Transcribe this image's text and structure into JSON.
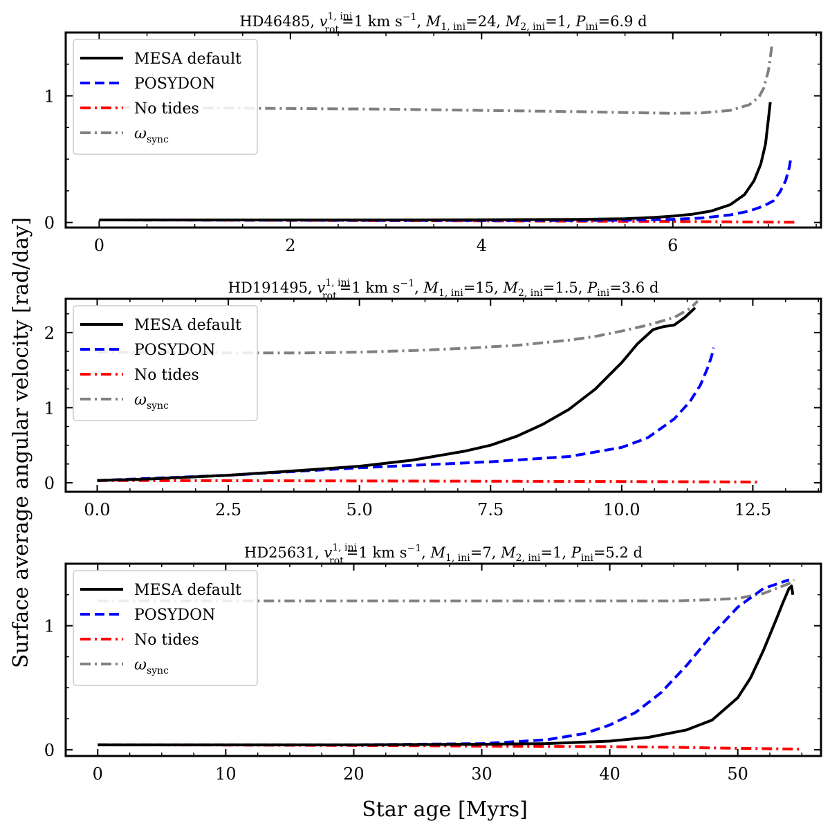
{
  "figure": {
    "ylabel": "Surface average angular velocity [rad/day]",
    "xlabel": "Star age [Myrs]"
  },
  "legend_entries": [
    {
      "label": "MESA default",
      "color": "#000000",
      "style": "solid"
    },
    {
      "label": "POSYDON",
      "color": "#0000ff",
      "style": "dashed"
    },
    {
      "label": "No tides",
      "color": "#ff0000",
      "style": "dashdot"
    },
    {
      "label": "ω",
      "sub": "sync",
      "color": "#808080",
      "style": "dashdot"
    }
  ],
  "chart_data": [
    {
      "type": "line",
      "title": "HD46485, v_rot^{1,ini}=1 km s^-1, M_{1,ini}=24, M_{2,ini}=1, P_ini=6.9 d",
      "title_parts": {
        "star": "HD46485",
        "M1": "24",
        "M2": "1",
        "P": "6.9 d"
      },
      "xlim": [
        -0.35,
        7.55
      ],
      "ylim": [
        -0.04,
        1.5
      ],
      "xticks": [
        0,
        2,
        4,
        6
      ],
      "xtick_labels": [
        "0",
        "2",
        "4",
        "6"
      ],
      "yticks": [
        0,
        1
      ],
      "ytick_labels": [
        "0",
        "1"
      ],
      "series": [
        {
          "name": "ω_sync",
          "x": [
            0,
            0.5,
            1,
            2,
            3,
            4,
            5,
            5.5,
            6,
            6.3,
            6.6,
            6.8,
            6.9,
            6.95,
            7.0,
            7.02,
            7.04
          ],
          "y": [
            0.91,
            0.91,
            0.905,
            0.9,
            0.895,
            0.885,
            0.875,
            0.868,
            0.862,
            0.865,
            0.885,
            0.93,
            0.99,
            1.06,
            1.2,
            1.3,
            1.42
          ]
        },
        {
          "name": "No tides",
          "x": [
            0,
            1,
            2,
            3,
            4,
            5,
            6,
            6.5,
            7,
            7.3
          ],
          "y": [
            0.02,
            0.019,
            0.017,
            0.015,
            0.013,
            0.011,
            0.008,
            0.006,
            0.003,
            0.002
          ]
        },
        {
          "name": "POSYDON",
          "x": [
            0,
            1,
            2,
            3,
            4,
            5,
            5.5,
            6,
            6.3,
            6.6,
            6.8,
            6.95,
            7.05,
            7.12,
            7.18,
            7.22,
            7.23
          ],
          "y": [
            0.02,
            0.019,
            0.018,
            0.017,
            0.016,
            0.016,
            0.018,
            0.025,
            0.035,
            0.06,
            0.09,
            0.13,
            0.17,
            0.24,
            0.33,
            0.44,
            0.49
          ]
        },
        {
          "name": "MESA default",
          "x": [
            0,
            1,
            2,
            3,
            4,
            5,
            5.5,
            5.8,
            6.0,
            6.2,
            6.4,
            6.6,
            6.75,
            6.85,
            6.92,
            6.97,
            7.0,
            7.02
          ],
          "y": [
            0.02,
            0.02,
            0.02,
            0.02,
            0.021,
            0.024,
            0.03,
            0.04,
            0.05,
            0.065,
            0.09,
            0.14,
            0.22,
            0.33,
            0.46,
            0.62,
            0.82,
            0.95
          ]
        }
      ]
    },
    {
      "type": "line",
      "title": "HD191495, v_rot^{1,ini}=1 km s^-1, M_{1,ini}=15, M_{2,ini}=1.5, P_ini=3.6 d",
      "title_parts": {
        "star": "HD191495",
        "M1": "15",
        "M2": "1.5",
        "P": "3.6 d"
      },
      "xlim": [
        -0.6,
        13.8
      ],
      "ylim": [
        -0.12,
        2.45
      ],
      "xticks": [
        0,
        2.5,
        5,
        7.5,
        10,
        12.5
      ],
      "xtick_labels": [
        "0.0",
        "2.5",
        "5.0",
        "7.5",
        "10.0",
        "12.5"
      ],
      "yticks": [
        0,
        1,
        2
      ],
      "ytick_labels": [
        "0",
        "1",
        "2"
      ],
      "series": [
        {
          "name": "ω_sync",
          "x": [
            0,
            2,
            4,
            5,
            6,
            7,
            8,
            9,
            9.5,
            10,
            10.5,
            11,
            11.3,
            11.45
          ],
          "y": [
            1.74,
            1.73,
            1.73,
            1.74,
            1.76,
            1.79,
            1.83,
            1.9,
            1.95,
            2.02,
            2.1,
            2.2,
            2.32,
            2.42
          ]
        },
        {
          "name": "No tides",
          "x": [
            0,
            2,
            4,
            6,
            8,
            10,
            12,
            12.6
          ],
          "y": [
            0.03,
            0.028,
            0.026,
            0.023,
            0.02,
            0.016,
            0.012,
            0.01
          ]
        },
        {
          "name": "POSYDON",
          "x": [
            0,
            2.5,
            5,
            7.5,
            9,
            10,
            10.5,
            11,
            11.3,
            11.5,
            11.65,
            11.72,
            11.75
          ],
          "y": [
            0.03,
            0.1,
            0.2,
            0.28,
            0.35,
            0.47,
            0.6,
            0.85,
            1.08,
            1.3,
            1.55,
            1.7,
            1.8
          ]
        },
        {
          "name": "MESA default",
          "x": [
            0,
            1,
            2.5,
            4,
            5,
            6,
            7,
            7.5,
            8,
            8.5,
            9,
            9.5,
            10,
            10.3,
            10.6,
            10.8,
            11.0,
            11.2,
            11.4
          ],
          "y": [
            0.03,
            0.05,
            0.1,
            0.17,
            0.22,
            0.3,
            0.42,
            0.5,
            0.62,
            0.78,
            0.98,
            1.25,
            1.6,
            1.85,
            2.04,
            2.08,
            2.1,
            2.2,
            2.33
          ]
        }
      ]
    },
    {
      "type": "line",
      "title": "HD25631, v_rot^{1,ini}=1 km s^-1, M_{1,ini}=7, M_{2,ini}=1, P_ini=5.2 d",
      "title_parts": {
        "star": "HD25631",
        "M1": "7",
        "M2": "1",
        "P": "5.2 d"
      },
      "xlim": [
        -2.5,
        56.5
      ],
      "ylim": [
        -0.05,
        1.5
      ],
      "xticks": [
        0,
        10,
        20,
        30,
        40,
        50
      ],
      "xtick_labels": [
        "0",
        "10",
        "20",
        "30",
        "40",
        "50"
      ],
      "yticks": [
        0,
        1
      ],
      "ytick_labels": [
        "0",
        "1"
      ],
      "series": [
        {
          "name": "ω_sync",
          "x": [
            0,
            10,
            20,
            30,
            40,
            45,
            48,
            50,
            52,
            54,
            54.4
          ],
          "y": [
            1.2,
            1.2,
            1.2,
            1.2,
            1.2,
            1.2,
            1.21,
            1.22,
            1.26,
            1.34,
            1.37
          ]
        },
        {
          "name": "No tides",
          "x": [
            0,
            10,
            20,
            30,
            40,
            45,
            50,
            55
          ],
          "y": [
            0.04,
            0.038,
            0.035,
            0.03,
            0.025,
            0.02,
            0.012,
            0.005
          ]
        },
        {
          "name": "POSYDON",
          "x": [
            0,
            10,
            20,
            30,
            35,
            38,
            40,
            42,
            44,
            46,
            48,
            50,
            52,
            54
          ],
          "y": [
            0.04,
            0.04,
            0.04,
            0.05,
            0.08,
            0.13,
            0.2,
            0.3,
            0.46,
            0.68,
            0.93,
            1.15,
            1.3,
            1.37
          ]
        },
        {
          "name": "MESA default",
          "x": [
            0,
            10,
            20,
            30,
            35,
            40,
            43,
            46,
            48,
            50,
            51,
            52,
            53,
            53.5,
            54,
            54.2,
            54.3
          ],
          "y": [
            0.04,
            0.04,
            0.04,
            0.045,
            0.05,
            0.07,
            0.1,
            0.16,
            0.24,
            0.42,
            0.58,
            0.8,
            1.05,
            1.18,
            1.3,
            1.32,
            1.25
          ]
        }
      ]
    }
  ]
}
